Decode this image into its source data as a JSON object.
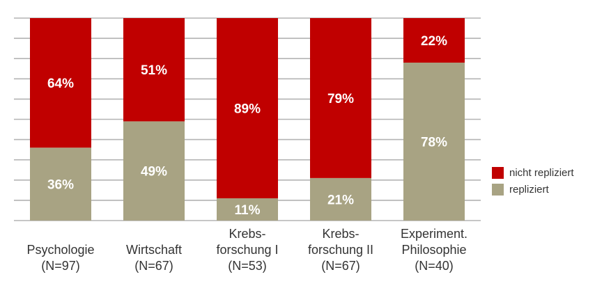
{
  "colors": {
    "nicht_repliziert": "#c00000",
    "repliziert": "#a8a383",
    "grid": "#b3b3b3",
    "bar_text": "#ffffff",
    "axis_text": "#333333"
  },
  "legend": {
    "position": "right",
    "items": [
      {
        "label": "nicht repliziert",
        "color": "#c00000"
      },
      {
        "label": "repliziert",
        "color": "#a8a383"
      }
    ]
  },
  "chart_data": {
    "type": "bar",
    "stacked": true,
    "title": "",
    "xlabel": "",
    "ylabel": "",
    "ylim": [
      0,
      100
    ],
    "grid": true,
    "categories": [
      [
        "Psychologie",
        "(N=97)"
      ],
      [
        "Wirtschaft",
        "(N=67)"
      ],
      [
        "Krebs-",
        "forschung I",
        "(N=53)"
      ],
      [
        "Krebs-",
        "forschung II",
        "(N=67)"
      ],
      [
        "Experiment.",
        "Philosophie",
        "(N=40)"
      ]
    ],
    "series": [
      {
        "name": "repliziert",
        "color": "#a8a383",
        "values": [
          36,
          49,
          11,
          21,
          78
        ]
      },
      {
        "name": "nicht repliziert",
        "color": "#c00000",
        "values": [
          64,
          51,
          89,
          79,
          22
        ]
      }
    ],
    "data_labels": [
      [
        "36%",
        "49%",
        "11%",
        "21%",
        "78%"
      ],
      [
        "64%",
        "51%",
        "89%",
        "79%",
        "22%"
      ]
    ]
  }
}
